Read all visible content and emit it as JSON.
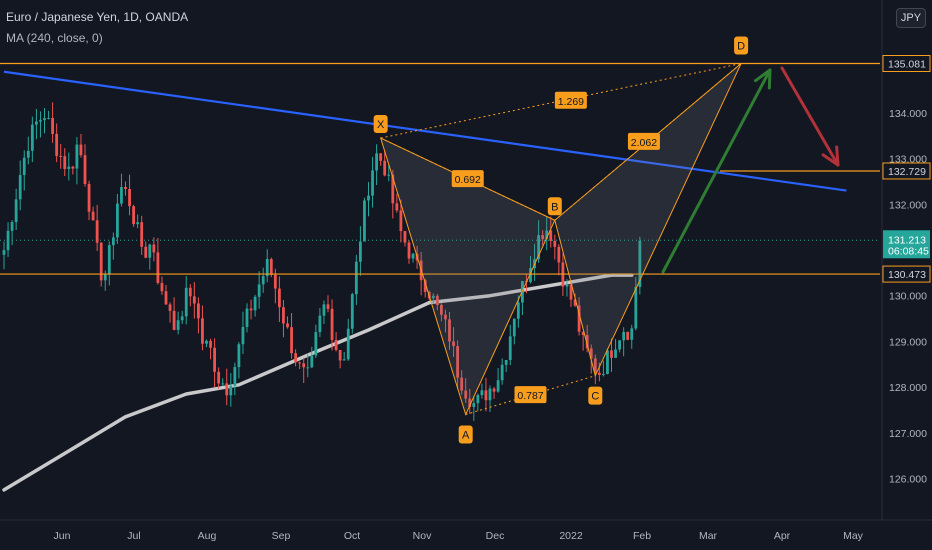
{
  "header": {
    "symbol": "Euro / Japanese Yen, 1D, OANDA",
    "indicator": "MA (240, close, 0)",
    "currency": "JPY"
  },
  "colors": {
    "bg": "#131722",
    "up": "#26a69a",
    "down": "#ef5350",
    "ma": "#c9c9cb",
    "trend": "#2962ff",
    "fib": "#f89d1c",
    "green_arrow": "#2e7d32",
    "red_arrow": "#b2323a"
  },
  "chart_data": {
    "type": "candlestick",
    "x_ticks": [
      "Jun",
      "Jul",
      "Aug",
      "Sep",
      "Oct",
      "Nov",
      "Dec",
      "2022",
      "Feb",
      "Mar",
      "Apr",
      "May"
    ],
    "y_ticks": [
      "126.000",
      "127.000",
      "128.000",
      "129.000",
      "130.000",
      "132.000",
      "133.000",
      "134.000"
    ],
    "ylim": [
      125.0,
      135.5
    ],
    "last_price": "131.213",
    "countdown": "06:08:45",
    "price_levels": [
      {
        "label": "135.081",
        "value": 135.081
      },
      {
        "label": "132.729",
        "value": 132.729
      },
      {
        "label": "130.473",
        "value": 130.473
      }
    ],
    "harmonic_points": [
      {
        "label": "X",
        "date_index": 93,
        "price": 133.45
      },
      {
        "label": "A",
        "date_index": 114,
        "price": 127.4
      },
      {
        "label": "B",
        "date_index": 136,
        "price": 131.65
      },
      {
        "label": "C",
        "date_index": 146,
        "price": 128.25
      },
      {
        "label": "D",
        "date_index": 182,
        "price": 135.08
      }
    ],
    "ratios": [
      "0.692",
      "0.787",
      "1.269",
      "2.062"
    ],
    "ma_series": [
      {
        "x": 0,
        "y": 125.75
      },
      {
        "x": 15,
        "y": 126.55
      },
      {
        "x": 30,
        "y": 127.35
      },
      {
        "x": 45,
        "y": 127.85
      },
      {
        "x": 58,
        "y": 128.05
      },
      {
        "x": 75,
        "y": 128.7
      },
      {
        "x": 90,
        "y": 129.25
      },
      {
        "x": 105,
        "y": 129.85
      },
      {
        "x": 120,
        "y": 130.0
      },
      {
        "x": 140,
        "y": 130.3
      },
      {
        "x": 150,
        "y": 130.45
      },
      {
        "x": 155,
        "y": 130.45
      }
    ],
    "trend_line": {
      "start": {
        "x": 0,
        "y": 134.9
      },
      "end": {
        "x": 208,
        "y": 132.3
      }
    },
    "candles_seed": [
      131.0,
      131.8,
      132.7,
      133.4,
      133.8,
      134.0,
      133.4,
      133.0,
      132.7,
      133.4,
      132.4,
      131.2,
      130.3,
      131.1,
      132.4,
      132.2,
      131.5,
      130.9,
      131.2,
      130.0,
      129.8,
      129.2,
      130.0,
      130.0,
      129.0,
      128.8,
      128.2,
      128.0,
      128.5,
      129.3,
      129.8,
      130.3,
      130.7,
      130.1,
      129.4,
      128.8,
      128.3,
      128.2,
      129.3,
      129.9,
      129.0,
      128.5,
      129.7,
      131.1,
      132.3,
      133.1,
      132.9,
      132.1,
      131.4,
      131.0,
      130.6,
      130.3,
      129.9,
      129.5,
      129.1,
      128.3,
      127.9,
      127.6,
      127.8,
      128.0,
      128.3,
      128.9,
      129.8,
      130.3,
      130.9,
      131.4,
      131.5,
      130.9,
      130.2,
      129.8,
      129.0,
      128.6,
      128.3,
      128.6,
      129.0,
      129.3,
      129.2,
      131.2
    ]
  }
}
